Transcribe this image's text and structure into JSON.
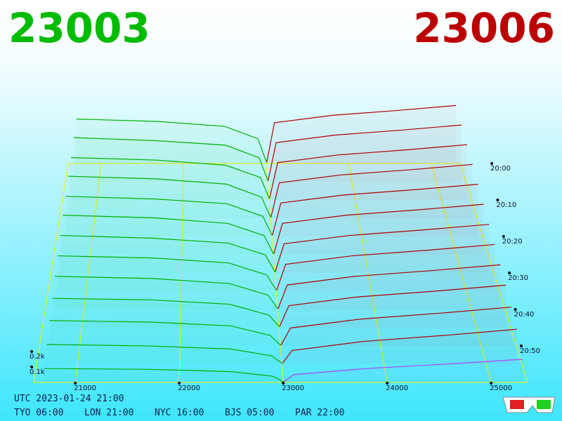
{
  "chart_data": {
    "type": "depth3d",
    "bid_title": "23003",
    "ask_title": "23006",
    "bid_color": "#00b000",
    "ask_color": "#b00000",
    "latest_ask_color": "#b040ff",
    "grid_color": "#f0f000",
    "xlim": [
      20600,
      25350
    ],
    "xticks": [
      21000,
      22000,
      23000,
      24000,
      25000
    ],
    "tlim": [
      0,
      60
    ],
    "tticks": [
      {
        "value": 0,
        "label": "20:00"
      },
      {
        "value": 10,
        "label": "20:10"
      },
      {
        "value": 20,
        "label": "20:20"
      },
      {
        "value": 30,
        "label": "20:30"
      },
      {
        "value": 40,
        "label": "20:40"
      },
      {
        "value": 50,
        "label": "20:50"
      }
    ],
    "dticks": [
      {
        "value": 200,
        "label": "0.2k"
      },
      {
        "value": 100,
        "label": "0.1k"
      }
    ],
    "times": [
      0,
      5,
      10,
      15,
      20,
      25,
      30,
      35,
      40,
      45,
      50,
      55,
      60
    ],
    "bid_prices": [
      20700,
      21700,
      22500,
      22900,
      23003
    ],
    "ask_prices": [
      23006,
      23100,
      23800,
      24600,
      25300
    ],
    "bids": [
      [
        360,
        340,
        300,
        200,
        10
      ],
      [
        350,
        325,
        290,
        190,
        8
      ],
      [
        330,
        310,
        270,
        175,
        10
      ],
      [
        320,
        300,
        260,
        160,
        6
      ],
      [
        300,
        280,
        245,
        150,
        8
      ],
      [
        290,
        270,
        230,
        140,
        5
      ],
      [
        270,
        250,
        215,
        130,
        7
      ],
      [
        250,
        235,
        200,
        115,
        6
      ],
      [
        230,
        215,
        180,
        100,
        5
      ],
      [
        200,
        190,
        160,
        85,
        6
      ],
      [
        170,
        160,
        135,
        70,
        4
      ],
      [
        130,
        120,
        100,
        55,
        5
      ],
      [
        90,
        85,
        70,
        40,
        3
      ]
    ],
    "asks": [
      [
        10,
        330,
        390,
        430,
        470
      ],
      [
        8,
        310,
        370,
        410,
        450
      ],
      [
        12,
        290,
        350,
        390,
        430
      ],
      [
        9,
        270,
        330,
        370,
        410
      ],
      [
        10,
        250,
        310,
        350,
        390
      ],
      [
        7,
        230,
        290,
        330,
        370
      ],
      [
        9,
        210,
        270,
        310,
        350
      ],
      [
        8,
        190,
        250,
        290,
        330
      ],
      [
        6,
        170,
        230,
        270,
        310
      ],
      [
        7,
        150,
        210,
        250,
        290
      ],
      [
        5,
        120,
        180,
        220,
        260
      ],
      [
        6,
        90,
        150,
        190,
        230
      ],
      [
        4,
        50,
        90,
        120,
        150
      ]
    ],
    "utc_label": "UTC 2023-01-24 21:00",
    "clocks": [
      "TYO 06:00",
      "LON 21:00",
      "NYC 16:00",
      "BJS 05:00",
      "PAR 22:00"
    ]
  }
}
